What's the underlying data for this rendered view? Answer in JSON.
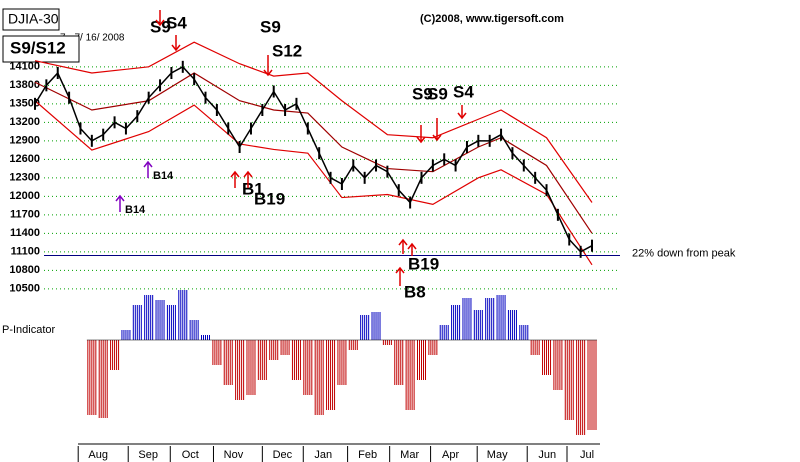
{
  "chart_data": {
    "type": "line",
    "title": "DJIA-30",
    "signal_box": "S9/S12",
    "date_text": "7 - 7/ 16/ 2008",
    "copyright": "(C)2008, www.tigersoft.com",
    "color": "#000000",
    "grid": true,
    "grid_color": "#00a000",
    "xlim": [
      0,
      49
    ],
    "xticks": [
      {
        "value": 3.8,
        "label": "Aug"
      },
      {
        "value": 8.2,
        "label": "Sep"
      },
      {
        "value": 11.9,
        "label": "Oct"
      },
      {
        "value": 15.7,
        "label": "Nov"
      },
      {
        "value": 20,
        "label": "Dec"
      },
      {
        "value": 23.6,
        "label": "Jan"
      },
      {
        "value": 27.5,
        "label": "Feb"
      },
      {
        "value": 31.2,
        "label": "Mar"
      },
      {
        "value": 34.8,
        "label": "Apr"
      },
      {
        "value": 38.9,
        "label": "May"
      },
      {
        "value": 43.3,
        "label": "Jun"
      },
      {
        "value": 46.8,
        "label": "Jul"
      }
    ],
    "ylim": [
      10400,
      14600
    ],
    "yticks": [
      14100,
      13800,
      13500,
      13200,
      12900,
      12600,
      12300,
      12000,
      11700,
      11400,
      11100,
      10800,
      10500
    ],
    "values": [
      13500,
      13800,
      14000,
      13600,
      13100,
      12900,
      13000,
      13200,
      13100,
      13300,
      13600,
      13800,
      14000,
      14100,
      13900,
      13600,
      13400,
      13100,
      12800,
      13100,
      13400,
      13700,
      13400,
      13500,
      13100,
      12700,
      12300,
      12200,
      12500,
      12300,
      12500,
      12400,
      12100,
      11900,
      12300,
      12500,
      12600,
      12500,
      12800,
      12900,
      12900,
      13000,
      12700,
      12500,
      12300,
      12100,
      11700,
      11300,
      11100,
      11200
    ],
    "bands": [
      {
        "color": "#e00000",
        "x": [
          0,
          5,
          10,
          14,
          18,
          21,
          24,
          27,
          31,
          35,
          39,
          41,
          45,
          49
        ],
        "values": [
          14200,
          14000,
          14100,
          14500,
          14150,
          13950,
          14000,
          13550,
          13000,
          12950,
          13250,
          13400,
          12950,
          11900
        ]
      },
      {
        "color": "#a00000",
        "x": [
          0,
          5,
          10,
          14,
          18,
          21,
          24,
          27,
          31,
          35,
          39,
          41,
          45,
          49
        ],
        "values": [
          13850,
          13400,
          13550,
          14000,
          13550,
          13400,
          13350,
          12800,
          12450,
          12400,
          12800,
          12950,
          12500,
          11400
        ]
      },
      {
        "color": "#e00000",
        "x": [
          0,
          5,
          10,
          14,
          18,
          21,
          24,
          27,
          31,
          35,
          39,
          41,
          45,
          49
        ],
        "values": [
          13550,
          12750,
          13050,
          13480,
          12850,
          12760,
          12700,
          11980,
          12030,
          11870,
          12300,
          12430,
          12030,
          10890
        ]
      }
    ],
    "reference_line": {
      "value": 11040,
      "label": "22% down from peak",
      "color": "#000080"
    },
    "signals": [
      {
        "text": "S9",
        "color": "#e00000"
      },
      {
        "text": "S4",
        "color": "#e00000"
      },
      {
        "text": "S9",
        "color": "#e00000"
      },
      {
        "text": "S12",
        "color": "#e00000"
      },
      {
        "text": "S9",
        "color": "#e00000"
      },
      {
        "text": "S9",
        "color": "#e00000"
      },
      {
        "text": "S4",
        "color": "#e00000"
      },
      {
        "text": "B14",
        "color": "#8000c0"
      },
      {
        "text": "B14",
        "color": "#8000c0"
      },
      {
        "text": "B1",
        "color": "#e00000"
      },
      {
        "text": "B19",
        "color": "#e00000"
      },
      {
        "text": "B19",
        "color": "#e00000"
      },
      {
        "text": "B8",
        "color": "#e00000"
      }
    ],
    "indicator": {
      "label": "P-Indicator",
      "ylim": [
        -100,
        55
      ],
      "positive_color": "#0000c0",
      "negative_color": "#c00000",
      "x": [
        5,
        6,
        7,
        8,
        9,
        10,
        11,
        12,
        13,
        14,
        15,
        16,
        17,
        18,
        19,
        20,
        21,
        22,
        23,
        24,
        25,
        26,
        27,
        28,
        29,
        30,
        31,
        32,
        33,
        34,
        35,
        36,
        37,
        38,
        39,
        40,
        41,
        42,
        43,
        44,
        45,
        46,
        47,
        48,
        49
      ],
      "values": [
        -75,
        -78,
        -30,
        10,
        35,
        45,
        40,
        35,
        50,
        20,
        5,
        -25,
        -45,
        -60,
        -55,
        -40,
        -20,
        -15,
        -40,
        -55,
        -75,
        -70,
        -45,
        -10,
        25,
        28,
        -5,
        -45,
        -70,
        -40,
        -15,
        15,
        35,
        42,
        30,
        42,
        45,
        30,
        15,
        -15,
        -35,
        -50,
        -80,
        -95,
        -90
      ]
    }
  }
}
